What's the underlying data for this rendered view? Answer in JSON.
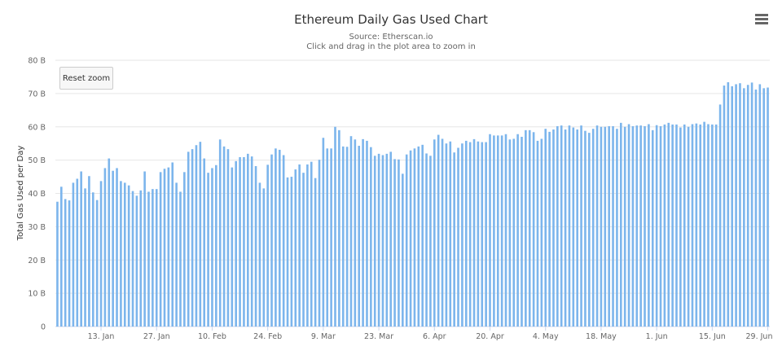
{
  "chart_data": {
    "type": "bar",
    "title": "Ethereum Daily Gas Used Chart",
    "subtitle": [
      "Source: Etherscan.io",
      "Click and drag in the plot area to zoom in"
    ],
    "xlabel": "",
    "ylabel": "Total Gas Used per Day",
    "ylim": [
      0,
      80
    ],
    "y_ticks": [
      0,
      10,
      20,
      30,
      40,
      50,
      60,
      70,
      80
    ],
    "y_tick_labels": [
      "0",
      "10 B",
      "20 B",
      "30 B",
      "40 B",
      "50 B",
      "60 B",
      "70 B",
      "80 B"
    ],
    "x_range": [
      "2020-01-02",
      "2020-06-29"
    ],
    "x_tick_labels": [
      "13. Jan",
      "27. Jan",
      "10. Feb",
      "24. Feb",
      "9. Mar",
      "23. Mar",
      "6. Apr",
      "20. Apr",
      "4. May",
      "18. May",
      "1. Jun",
      "15. Jun",
      "29. Jun"
    ],
    "x_tick_dates": [
      "2020-01-13",
      "2020-01-27",
      "2020-02-10",
      "2020-02-24",
      "2020-03-09",
      "2020-03-23",
      "2020-04-06",
      "2020-04-20",
      "2020-05-04",
      "2020-05-18",
      "2020-06-01",
      "2020-06-15",
      "2020-06-29"
    ],
    "unit": "B",
    "values": [
      37.5,
      42,
      38.3,
      37.9,
      43.2,
      44.4,
      46.6,
      41.5,
      45.2,
      40.3,
      38,
      43.7,
      47.6,
      50.5,
      46.8,
      47.6,
      43.7,
      43.2,
      42.4,
      40.7,
      39.3,
      40.9,
      46.6,
      40.5,
      41.3,
      41.3,
      46.4,
      47.4,
      47.8,
      49.3,
      43.2,
      40.5,
      46.4,
      52.5,
      53.3,
      54.5,
      55.5,
      50.5,
      46.2,
      47.6,
      48.5,
      56.2,
      54.1,
      53.3,
      47.8,
      49.7,
      50.9,
      50.9,
      51.9,
      51.1,
      48.2,
      43.2,
      41.5,
      48.6,
      51.7,
      53.5,
      53.1,
      51.5,
      44.8,
      45,
      47.2,
      48.7,
      46.2,
      48.7,
      49.5,
      44.6,
      50.1,
      56.7,
      53.5,
      53.5,
      60,
      59,
      54.1,
      54,
      57.2,
      56.2,
      54.3,
      56.3,
      55.8,
      53.9,
      51.3,
      51.9,
      51.5,
      51.9,
      52.5,
      50.3,
      50.2,
      45.9,
      51.7,
      52.9,
      53.5,
      54.1,
      54.6,
      52,
      51.3,
      56.2,
      57.6,
      56.4,
      55,
      55.6,
      52.3,
      53.7,
      55,
      55.8,
      55.4,
      56.3,
      55.6,
      55.4,
      55.4,
      57.8,
      57.4,
      57.4,
      57.4,
      57.8,
      56.2,
      56.4,
      57.8,
      57,
      59,
      59,
      58.4,
      55.8,
      56.4,
      59.4,
      58.5,
      59.2,
      60.2,
      60.4,
      59.2,
      60.4,
      59.8,
      59.2,
      60.4,
      58.8,
      58.2,
      59.4,
      60.4,
      60,
      60,
      60.2,
      60.2,
      59.4,
      61.2,
      60,
      60.8,
      60.2,
      60.4,
      60.4,
      60.2,
      60.8,
      59,
      60.5,
      60.2,
      60.7,
      61.2,
      60.7,
      60.7,
      59.8,
      60.7,
      60,
      60.8,
      61,
      60.7,
      61.5,
      60.8,
      60.7,
      60.7,
      66.7,
      72.4,
      73.4,
      72.2,
      72.8,
      73.1,
      71.6,
      72.6,
      73.3,
      71.2,
      72.8,
      71.6,
      71.8
    ],
    "grid": true,
    "legend": "none",
    "colors": {
      "bar": "#7cb5ec",
      "grid": "#e6e6e6"
    }
  },
  "controls": {
    "reset_zoom": "Reset zoom",
    "menu_icon": "hamburger-menu-icon"
  }
}
